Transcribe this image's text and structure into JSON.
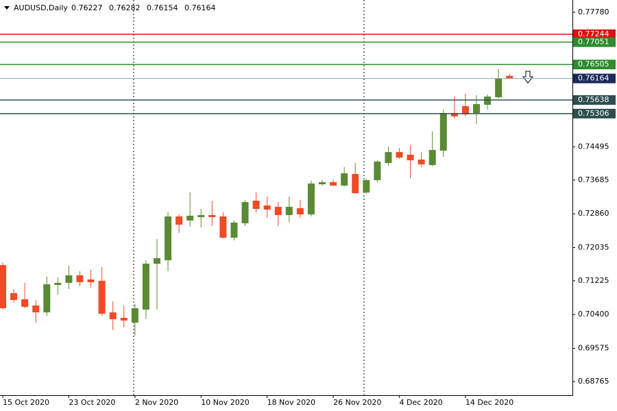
{
  "chart_data": {
    "type": "candlestick",
    "symbol": "AUDUSD,Daily",
    "categories": [
      "15 Oct 2020",
      null,
      null,
      null,
      null,
      null,
      "23 Oct 2020",
      null,
      null,
      null,
      null,
      null,
      "2 Nov 2020",
      null,
      null,
      null,
      null,
      null,
      "10 Nov 2020",
      null,
      null,
      null,
      null,
      null,
      "18 Nov 2020",
      null,
      null,
      null,
      null,
      null,
      "26 Nov 2020",
      null,
      null,
      null,
      null,
      null,
      "4 Dec 2020",
      null,
      null,
      null,
      null,
      null,
      "14 Dec 2020",
      null,
      null,
      null,
      null
    ],
    "open": [
      0.71608,
      0.70923,
      0.70772,
      0.70622,
      0.70454,
      0.71123,
      0.71174,
      0.71358,
      0.71257,
      0.71224,
      0.70454,
      0.7032,
      0.70204,
      0.70522,
      0.71642,
      0.71726,
      0.72796,
      0.72696,
      0.72779,
      0.72829,
      0.72796,
      0.72277,
      0.72629,
      0.7318,
      0.73063,
      0.7303,
      0.72829,
      0.72997,
      0.72846,
      0.73582,
      0.73632,
      0.73549,
      0.73833,
      0.73381,
      0.73682,
      0.741,
      0.74368,
      0.74301,
      0.74184,
      0.7405,
      0.74402,
      0.75321,
      0.75489,
      0.75321,
      0.75522,
      0.75706,
      0.76227
    ],
    "high": [
      0.71675,
      0.71023,
      0.71174,
      0.70756,
      0.71324,
      0.71307,
      0.71592,
      0.71458,
      0.71492,
      0.71559,
      0.70722,
      0.70622,
      0.70655,
      0.71726,
      0.72244,
      0.72896,
      0.72846,
      0.73381,
      0.7298,
      0.7318,
      0.72896,
      0.72696,
      0.73197,
      0.73381,
      0.73281,
      0.73147,
      0.73281,
      0.73197,
      0.73666,
      0.73682,
      0.73699,
      0.74,
      0.741,
      0.73716,
      0.74167,
      0.74502,
      0.74468,
      0.74535,
      0.74368,
      0.7487,
      0.75405,
      0.75723,
      0.7579,
      0.75756,
      0.75773,
      0.76392,
      0.76282
    ],
    "low": [
      0.70522,
      0.70689,
      0.70555,
      0.70204,
      0.70371,
      0.70889,
      0.71023,
      0.7109,
      0.71057,
      0.70371,
      0.7002,
      0.70087,
      0.69886,
      0.70287,
      0.70522,
      0.71458,
      0.72395,
      0.72545,
      0.72528,
      0.72562,
      0.7226,
      0.7221,
      0.72562,
      0.72896,
      0.72762,
      0.72562,
      0.72662,
      0.72762,
      0.72796,
      0.73549,
      0.73532,
      0.73532,
      0.73348,
      0.73348,
      0.73632,
      0.74034,
      0.74201,
      0.73733,
      0.74,
      0.74017,
      0.74251,
      0.75188,
      0.75238,
      0.75054,
      0.75405,
      0.75673,
      0.76154
    ],
    "close": [
      0.70555,
      0.70756,
      0.70588,
      0.70454,
      0.7114,
      0.71174,
      0.71358,
      0.71191,
      0.71191,
      0.70421,
      0.70287,
      0.70254,
      0.70555,
      0.71642,
      0.71776,
      0.72796,
      0.72595,
      0.72813,
      0.72829,
      0.72779,
      0.72277,
      0.72645,
      0.73147,
      0.7298,
      0.72963,
      0.72829,
      0.7303,
      0.72846,
      0.73599,
      0.73632,
      0.73549,
      0.7385,
      0.73364,
      0.73682,
      0.74134,
      0.74368,
      0.74234,
      0.74167,
      0.74067,
      0.74418,
      0.75321,
      0.75238,
      0.75288,
      0.75539,
      0.75723,
      0.76158,
      0.76164
    ],
    "up_color": "#5a8a34",
    "down_color": "#ee4b26",
    "ylim": [
      0.6843,
      0.7808
    ],
    "yticks": [
      {
        "value": 0.7778,
        "label": "0.77780"
      },
      0.74495,
      0.73685,
      {
        "value": 0.7286,
        "label": "0.72860"
      },
      0.72035,
      0.71225,
      {
        "value": 0.704,
        "label": "0.70400"
      },
      0.69575,
      0.68765
    ],
    "levels": [
      {
        "value": 0.77244,
        "color": "#e01010"
      },
      {
        "value": 0.77051,
        "color": "#2e8b2e"
      },
      {
        "value": 0.76505,
        "color": "#2e8b2e"
      },
      {
        "value": 0.75638,
        "color": "#2f4f4f"
      },
      {
        "value": 0.75306,
        "color": "#2f4f4f"
      }
    ],
    "current_color": "#1c2a5c"
  }
}
